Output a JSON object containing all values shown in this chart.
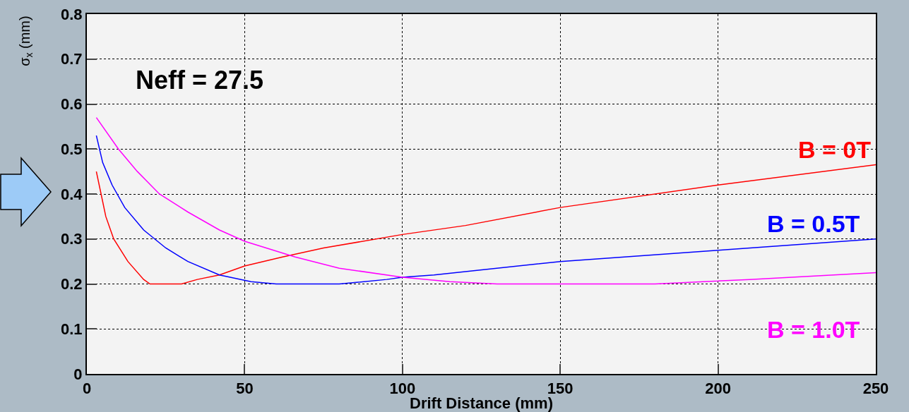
{
  "chart_data": {
    "type": "line",
    "xlabel": "Drift Distance (mm)",
    "ylabel": "σ$_{x}$ (mm)",
    "annotations": [
      "Neff = 27.5"
    ],
    "xlim": [
      0,
      250
    ],
    "xticks": [
      0,
      50,
      100,
      150,
      200,
      250
    ],
    "ylim": [
      0,
      0.8
    ],
    "yticks": [
      0,
      0.1,
      0.2,
      0.3,
      0.4,
      0.5,
      0.6,
      0.7,
      0.8
    ],
    "grid": true,
    "legend": false,
    "line_style": "solid",
    "marker": "none",
    "series": [
      {
        "name": "B = 0T",
        "color": "#ff0000",
        "x": [
          3,
          4.5,
          6,
          8.5,
          13,
          18,
          20,
          25,
          30,
          35,
          42,
          50,
          62,
          75,
          100,
          120,
          150,
          200,
          250
        ],
        "values": [
          0.45,
          0.4,
          0.35,
          0.3,
          0.25,
          0.21,
          0.2,
          0.2,
          0.2,
          0.21,
          0.22,
          0.24,
          0.26,
          0.28,
          0.31,
          0.33,
          0.37,
          0.42,
          0.465
        ]
      },
      {
        "name": "B = 0.5T",
        "color": "#0000ff",
        "x": [
          3,
          5,
          8,
          12,
          18,
          25,
          32,
          42,
          52,
          60,
          70,
          80,
          95,
          100,
          110,
          150,
          200,
          250
        ],
        "values": [
          0.53,
          0.47,
          0.42,
          0.37,
          0.32,
          0.28,
          0.25,
          0.22,
          0.205,
          0.2,
          0.2,
          0.2,
          0.21,
          0.215,
          0.22,
          0.25,
          0.275,
          0.3
        ]
      },
      {
        "name": "B = 1.0T",
        "color": "#ff00ff",
        "x": [
          3,
          10,
          16,
          23,
          32,
          42,
          50,
          66,
          80,
          100,
          115,
          130,
          150,
          180,
          210,
          250
        ],
        "values": [
          0.57,
          0.5,
          0.45,
          0.4,
          0.36,
          0.32,
          0.295,
          0.26,
          0.235,
          0.215,
          0.205,
          0.2,
          0.2,
          0.2,
          0.21,
          0.225
        ]
      }
    ]
  }
}
